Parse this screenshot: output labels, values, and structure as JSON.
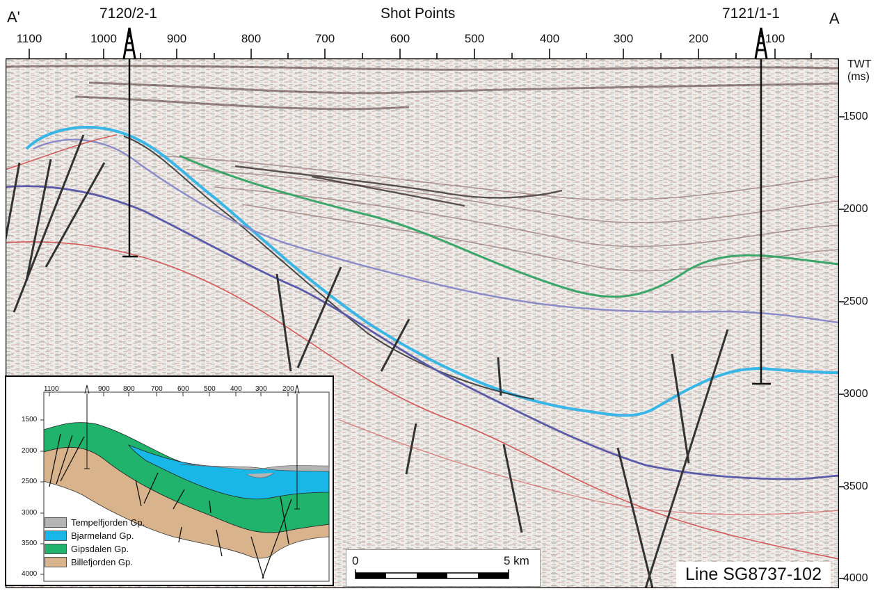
{
  "labels": {
    "a_prime": "A'",
    "a": "A",
    "well_left": "7120/2-1",
    "well_right": "7121/1-1",
    "shot_points_title": "Shot Points",
    "twt_line1": "TWT",
    "twt_line2": "(ms)",
    "line_name": "Line SG8737-102"
  },
  "shot_points": [
    "1100",
    "1000",
    "900",
    "800",
    "700",
    "600",
    "500",
    "400",
    "300",
    "200",
    "100"
  ],
  "twt_ticks": [
    "1500",
    "2000",
    "2500",
    "3000",
    "3500",
    "4000"
  ],
  "inset": {
    "shot_points": [
      "1100",
      "900",
      "800",
      "700",
      "600",
      "500",
      "400",
      "300",
      "200"
    ],
    "twt_ticks": [
      "1500",
      "2000",
      "2500",
      "3000",
      "3500",
      "4000"
    ],
    "legend": [
      {
        "label": "Tempelfjorden Gp.",
        "color": "#b4b4b4"
      },
      {
        "label": "Bjarmeland Gp.",
        "color": "#19b7e8"
      },
      {
        "label": "Gipsdalen Gp.",
        "color": "#1fb36b"
      },
      {
        "label": "Billefjorden Gp.",
        "color": "#d9b38c"
      }
    ]
  },
  "scale_bar": {
    "start": "0",
    "end": "5 km"
  },
  "colors": {
    "horizon_green": "#3aa66a",
    "horizon_cyan": "#39b6e6",
    "horizon_purple": "#5a5aa8",
    "horizon_red": "#d45a5a",
    "fault": "#333333"
  }
}
